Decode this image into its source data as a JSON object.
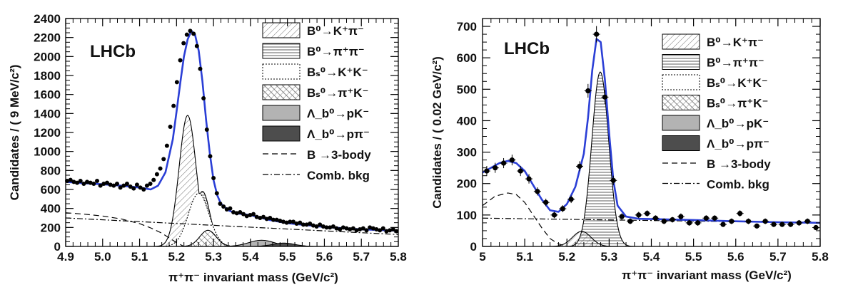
{
  "chart_data": [
    {
      "type": "scatter",
      "experiment_label": "LHCb",
      "xlabel": "π⁺π⁻ invariant mass (GeV/c²)",
      "ylabel": "Candidates / ( 9 MeV/c²)",
      "xlim": [
        4.9,
        5.8
      ],
      "ylim": [
        0,
        2400
      ],
      "x_ticks": [
        "4.9",
        "5.0",
        "5.1",
        "5.2",
        "5.3",
        "5.4",
        "5.5",
        "5.6",
        "5.7",
        "5.8"
      ],
      "y_ticks": [
        "0",
        "200",
        "400",
        "600",
        "800",
        "1000",
        "1200",
        "1400",
        "1600",
        "1800",
        "2000",
        "2200",
        "2400"
      ],
      "legend": [
        "B⁰→K⁺π⁻",
        "B⁰→π⁺π⁻",
        "Bₛ⁰→K⁺K⁻",
        "Bₛ⁰→π⁺K⁻",
        "Λ_b⁰→pK⁻",
        "Λ_b⁰→pπ⁻",
        "B →3-body",
        "Comb. bkg"
      ],
      "data_points": {
        "x": [
          4.904,
          4.913,
          4.922,
          4.931,
          4.94,
          4.949,
          4.958,
          4.967,
          4.976,
          4.985,
          4.994,
          5.003,
          5.012,
          5.021,
          5.03,
          5.039,
          5.048,
          5.057,
          5.066,
          5.075,
          5.084,
          5.093,
          5.102,
          5.111,
          5.12,
          5.129,
          5.138,
          5.147,
          5.156,
          5.165,
          5.174,
          5.183,
          5.192,
          5.201,
          5.21,
          5.219,
          5.228,
          5.237,
          5.246,
          5.255,
          5.264,
          5.273,
          5.282,
          5.291,
          5.3,
          5.309,
          5.318,
          5.327,
          5.336,
          5.345,
          5.354,
          5.363,
          5.372,
          5.381,
          5.39,
          5.399,
          5.408,
          5.417,
          5.426,
          5.435,
          5.444,
          5.453,
          5.462,
          5.471,
          5.48,
          5.489,
          5.498,
          5.507,
          5.516,
          5.525,
          5.534,
          5.543,
          5.552,
          5.561,
          5.57,
          5.579,
          5.588,
          5.597,
          5.606,
          5.615,
          5.624,
          5.633,
          5.642,
          5.651,
          5.66,
          5.669,
          5.678,
          5.687,
          5.696,
          5.705,
          5.714,
          5.723,
          5.732,
          5.741,
          5.75,
          5.759,
          5.768,
          5.777,
          5.786,
          5.795
        ],
        "y": [
          690,
          700,
          680,
          670,
          690,
          660,
          680,
          670,
          660,
          690,
          640,
          660,
          670,
          650,
          640,
          660,
          620,
          640,
          660,
          630,
          610,
          650,
          620,
          600,
          640,
          660,
          700,
          760,
          820,
          920,
          1060,
          1260,
          1480,
          1730,
          1960,
          2140,
          2230,
          2270,
          2240,
          2110,
          1870,
          1560,
          1230,
          950,
          720,
          560,
          450,
          420,
          390,
          400,
          360,
          350,
          360,
          340,
          320,
          330,
          340,
          310,
          300,
          310,
          290,
          300,
          280,
          280,
          270,
          260,
          250,
          260,
          260,
          240,
          250,
          230,
          230,
          240,
          220,
          210,
          230,
          210,
          200,
          200,
          210,
          190,
          180,
          200,
          190,
          180,
          190,
          170,
          180,
          190,
          170,
          200,
          190,
          180,
          170,
          190,
          160,
          170,
          180,
          160
        ]
      },
      "fit_components": [
        {
          "name": "B⁰→K⁺π⁻",
          "peak_x": 5.23,
          "peak_y": 1380,
          "width": 0.023
        },
        {
          "name": "B⁰→π⁺π⁻",
          "peak_x": 5.27,
          "peak_y": 580,
          "width": 0.02
        },
        {
          "name": "Bₛ⁰→K⁺K⁻",
          "peak_x": 5.26,
          "peak_y": 560,
          "width": 0.028
        },
        {
          "name": "Bₛ⁰→π⁺K⁻",
          "peak_x": 5.285,
          "peak_y": 170,
          "width": 0.022
        },
        {
          "name": "Λ_b⁰→pK⁻",
          "peak_x": 5.43,
          "peak_y": 65,
          "width": 0.035
        },
        {
          "name": "Λ_b⁰→pπ⁻",
          "peak_x": 5.49,
          "peak_y": 35,
          "width": 0.03
        },
        {
          "name": "B →3-body",
          "x": [
            4.9,
            4.95,
            5.0,
            5.05,
            5.1,
            5.13,
            5.16,
            5.18,
            5.2,
            5.22
          ],
          "y": [
            355,
            340,
            320,
            290,
            240,
            195,
            140,
            90,
            40,
            0
          ]
        },
        {
          "name": "Comb. bkg",
          "x": [
            4.9,
            5.8
          ],
          "y": [
            300,
            125
          ]
        }
      ],
      "total_fit": {
        "x": [
          4.9,
          4.95,
          5.0,
          5.05,
          5.1,
          5.13,
          5.15,
          5.17,
          5.19,
          5.2,
          5.21,
          5.22,
          5.23,
          5.24,
          5.25,
          5.26,
          5.27,
          5.28,
          5.29,
          5.3,
          5.31,
          5.32,
          5.34,
          5.36,
          5.4,
          5.45,
          5.5,
          5.6,
          5.7,
          5.8
        ],
        "y": [
          680,
          665,
          655,
          640,
          620,
          600,
          640,
          780,
          1130,
          1420,
          1720,
          2000,
          2180,
          2270,
          2230,
          2060,
          1740,
          1330,
          980,
          700,
          540,
          450,
          380,
          350,
          330,
          280,
          245,
          205,
          180,
          165
        ]
      }
    },
    {
      "type": "scatter",
      "experiment_label": "LHCb",
      "xlabel": "π⁺π⁻ invariant mass (GeV/c²)",
      "ylabel": "Candidates / ( 0.02 GeV/c²)",
      "xlim": [
        5.0,
        5.8
      ],
      "ylim": [
        0,
        725
      ],
      "x_ticks": [
        "5",
        "5.1",
        "5.2",
        "5.3",
        "5.4",
        "5.5",
        "5.6",
        "5.7",
        "5.8"
      ],
      "y_ticks": [
        "0",
        "100",
        "200",
        "300",
        "400",
        "500",
        "600",
        "700"
      ],
      "legend": [
        "B⁰→K⁺π⁻",
        "B⁰→π⁺π⁻",
        "Bₛ⁰→K⁺K⁻",
        "Bₛ⁰→π⁺K⁻",
        "Λ_b⁰→pK⁻",
        "Λ_b⁰→pπ⁻",
        "B →3-body",
        "Comb. bkg"
      ],
      "data_points": {
        "x": [
          5.01,
          5.03,
          5.05,
          5.07,
          5.09,
          5.11,
          5.13,
          5.15,
          5.17,
          5.19,
          5.21,
          5.23,
          5.25,
          5.27,
          5.29,
          5.31,
          5.33,
          5.35,
          5.37,
          5.39,
          5.41,
          5.43,
          5.45,
          5.47,
          5.49,
          5.51,
          5.53,
          5.55,
          5.57,
          5.59,
          5.61,
          5.63,
          5.65,
          5.67,
          5.69,
          5.71,
          5.73,
          5.75,
          5.77,
          5.79
        ],
        "y": [
          240,
          250,
          265,
          275,
          240,
          215,
          175,
          140,
          100,
          120,
          150,
          255,
          495,
          675,
          475,
          210,
          95,
          80,
          100,
          105,
          90,
          80,
          85,
          95,
          75,
          75,
          90,
          90,
          70,
          80,
          105,
          80,
          65,
          80,
          70,
          70,
          70,
          75,
          80,
          60
        ],
        "yerr": [
          16,
          16,
          16,
          17,
          16,
          15,
          13,
          12,
          10,
          11,
          12,
          16,
          22,
          26,
          22,
          15,
          10,
          9,
          10,
          10,
          9,
          9,
          9,
          10,
          9,
          9,
          9,
          9,
          8,
          9,
          10,
          9,
          8,
          9,
          8,
          8,
          8,
          9,
          9,
          8
        ]
      },
      "fit_components": [
        {
          "name": "B⁰→π⁺π⁻",
          "peak_x": 5.279,
          "peak_y": 555,
          "width": 0.02
        },
        {
          "name": "B⁰→K⁺π⁻",
          "peak_x": 5.235,
          "peak_y": 48,
          "width": 0.022
        },
        {
          "name": "B →3-body",
          "x": [
            5.0,
            5.03,
            5.06,
            5.08,
            5.1,
            5.12,
            5.14,
            5.16,
            5.18,
            5.2
          ],
          "y": [
            130,
            160,
            170,
            165,
            140,
            100,
            60,
            25,
            8,
            0
          ]
        },
        {
          "name": "Comb. bkg",
          "x": [
            5.0,
            5.8
          ],
          "y": [
            90,
            75
          ]
        }
      ],
      "total_fit": {
        "x": [
          5.0,
          5.02,
          5.04,
          5.06,
          5.08,
          5.1,
          5.12,
          5.14,
          5.16,
          5.18,
          5.2,
          5.22,
          5.24,
          5.25,
          5.26,
          5.27,
          5.28,
          5.29,
          5.3,
          5.31,
          5.32,
          5.34,
          5.37,
          5.4,
          5.5,
          5.6,
          5.7,
          5.8
        ],
        "y": [
          235,
          250,
          265,
          272,
          265,
          240,
          195,
          150,
          115,
          110,
          135,
          190,
          295,
          410,
          560,
          660,
          650,
          530,
          360,
          210,
          130,
          95,
          88,
          87,
          84,
          80,
          77,
          75
        ]
      }
    }
  ]
}
